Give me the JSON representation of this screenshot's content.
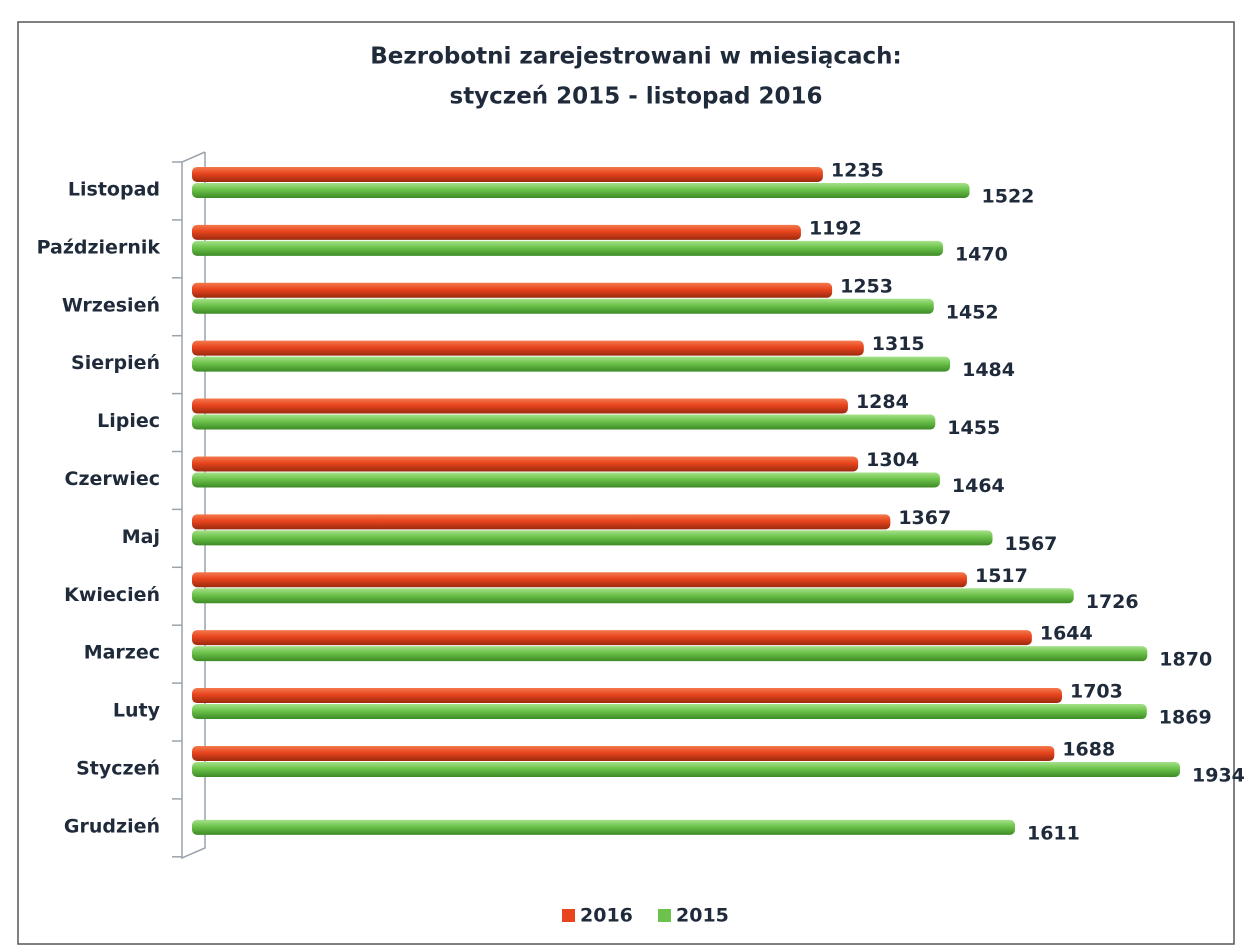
{
  "chart_data": {
    "type": "bar",
    "orientation": "horizontal",
    "title": [
      "Bezrobotni zarejestrowani w miesiącach:",
      "styczeń 2015 - listopad 2016"
    ],
    "categories": [
      "Listopad",
      "Październik",
      "Wrzesień",
      "Sierpień",
      "Lipiec",
      "Czerwiec",
      "Maj",
      "Kwiecień",
      "Marzec",
      "Luty",
      "Styczeń",
      "Grudzień"
    ],
    "series": [
      {
        "name": "2016",
        "color": "#e8441d",
        "values": [
          1235,
          1192,
          1253,
          1315,
          1284,
          1304,
          1367,
          1517,
          1644,
          1703,
          1688,
          null
        ]
      },
      {
        "name": "2015",
        "color": "#6cc24a",
        "values": [
          1522,
          1470,
          1452,
          1484,
          1455,
          1464,
          1567,
          1726,
          1870,
          1869,
          1934,
          1611
        ]
      }
    ],
    "legend": "bottom"
  }
}
